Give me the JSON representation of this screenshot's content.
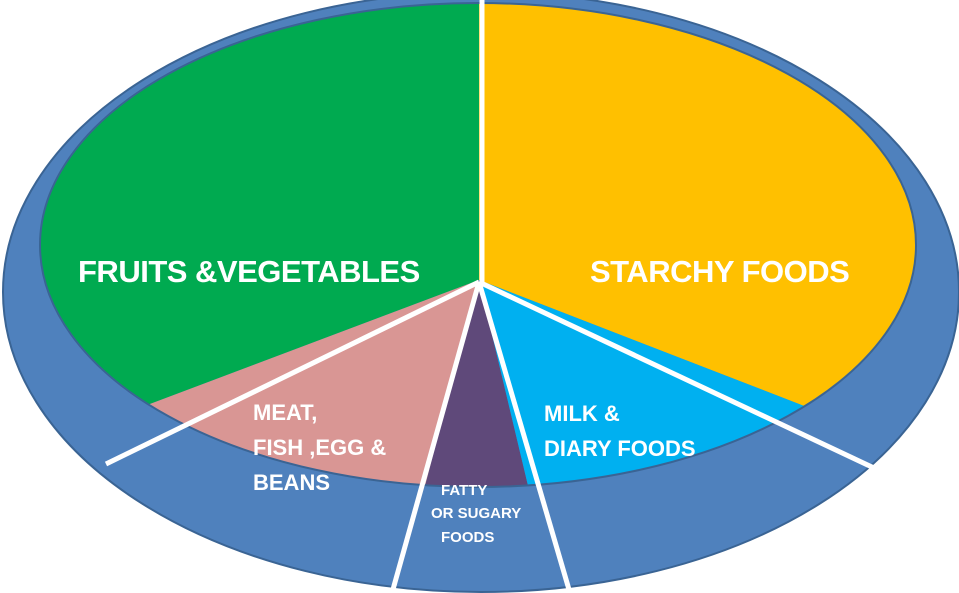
{
  "segments": {
    "fruits_vegetables": {
      "label": "FRUITS &VEGETABLES",
      "color": "#00AA50"
    },
    "starchy_foods": {
      "label": "STARCHY FOODS",
      "color": "#FFC000"
    },
    "meat_fish_egg_beans": {
      "lines": [
        "MEAT,",
        "FISH ,EGG &",
        "BEANS"
      ],
      "color": "#D99694"
    },
    "fatty_sugary_foods": {
      "lines": [
        "FATTY",
        "OR SUGARY",
        "FOODS"
      ],
      "color": "#5F497A"
    },
    "milk_dairy_foods": {
      "lines": [
        "MILK &",
        "DIARY FOODS"
      ],
      "color": "#00B0F0"
    }
  },
  "plate": {
    "rim_color": "#4F81BD",
    "divider_color": "#ffffff"
  }
}
